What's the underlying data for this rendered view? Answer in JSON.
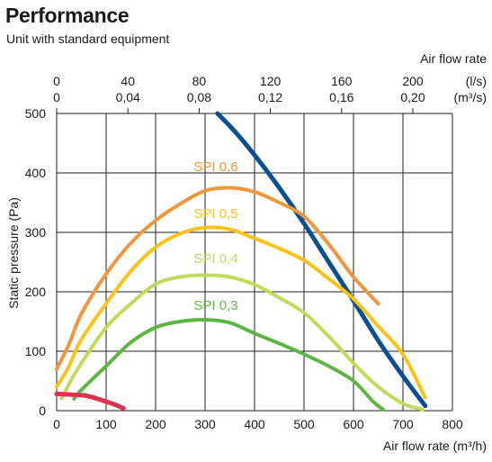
{
  "header": {
    "title": "Performance",
    "subtitle": "Unit with standard equipment"
  },
  "chart_data": {
    "type": "line",
    "title": "Performance",
    "subtitle": "Unit with standard equipment",
    "xlabel": "Air flow rate (m³/h)",
    "ylabel": "Static pressure (Pa)",
    "top_axis_title": "Air flow rate",
    "top_axis_units": [
      "(l/s)",
      "(m³/s)"
    ],
    "xlim": [
      0,
      800
    ],
    "ylim": [
      0,
      500
    ],
    "x_ticks": [
      0,
      100,
      200,
      300,
      400,
      500,
      600,
      700,
      800
    ],
    "y_ticks": [
      0,
      100,
      200,
      300,
      400,
      500
    ],
    "top_ticks_ls": [
      "0",
      "40",
      "80",
      "120",
      "160",
      "200"
    ],
    "top_ticks_m3s": [
      "0",
      "0,04",
      "0,08",
      "0,12",
      "0,16",
      "0,20"
    ],
    "top_tick_m3h": [
      0,
      144,
      288,
      432,
      576,
      720
    ],
    "grid": true,
    "series": [
      {
        "color": "#0b4f95",
        "points": [
          [
            325,
            500
          ],
          [
            360,
            470
          ],
          [
            400,
            430
          ],
          [
            450,
            375
          ],
          [
            500,
            315
          ],
          [
            550,
            250
          ],
          [
            600,
            185
          ],
          [
            650,
            118
          ],
          [
            700,
            58
          ],
          [
            745,
            8
          ]
        ]
      },
      {
        "color": "#f0963c",
        "label": "SPI 0,6",
        "points": [
          [
            0,
            70
          ],
          [
            25,
            112
          ],
          [
            50,
            163
          ],
          [
            100,
            230
          ],
          [
            150,
            282
          ],
          [
            200,
            320
          ],
          [
            250,
            348
          ],
          [
            300,
            370
          ],
          [
            350,
            375
          ],
          [
            400,
            368
          ],
          [
            450,
            350
          ],
          [
            500,
            327
          ],
          [
            550,
            280
          ],
          [
            600,
            225
          ],
          [
            650,
            180
          ]
        ]
      },
      {
        "color": "#fbc219",
        "label": "SPI 0,5",
        "points": [
          [
            0,
            40
          ],
          [
            25,
            75
          ],
          [
            50,
            120
          ],
          [
            100,
            180
          ],
          [
            150,
            235
          ],
          [
            200,
            275
          ],
          [
            250,
            298
          ],
          [
            300,
            308
          ],
          [
            350,
            305
          ],
          [
            400,
            290
          ],
          [
            450,
            273
          ],
          [
            500,
            253
          ],
          [
            550,
            222
          ],
          [
            600,
            188
          ],
          [
            650,
            142
          ],
          [
            700,
            95
          ],
          [
            745,
            22
          ]
        ]
      },
      {
        "color": "#c0dc5a",
        "label": "SPI 0,4",
        "points": [
          [
            10,
            20
          ],
          [
            25,
            45
          ],
          [
            50,
            80
          ],
          [
            100,
            140
          ],
          [
            150,
            180
          ],
          [
            200,
            213
          ],
          [
            250,
            225
          ],
          [
            300,
            228
          ],
          [
            350,
            225
          ],
          [
            400,
            212
          ],
          [
            450,
            190
          ],
          [
            500,
            165
          ],
          [
            550,
            125
          ],
          [
            600,
            80
          ],
          [
            650,
            40
          ],
          [
            700,
            12
          ],
          [
            740,
            2
          ]
        ]
      },
      {
        "color": "#5fb544",
        "label": "SPI 0,3",
        "points": [
          [
            35,
            20
          ],
          [
            50,
            35
          ],
          [
            100,
            75
          ],
          [
            150,
            115
          ],
          [
            200,
            140
          ],
          [
            250,
            150
          ],
          [
            300,
            153
          ],
          [
            350,
            148
          ],
          [
            400,
            130
          ],
          [
            450,
            113
          ],
          [
            500,
            95
          ],
          [
            550,
            75
          ],
          [
            600,
            50
          ],
          [
            640,
            15
          ],
          [
            660,
            2
          ]
        ]
      },
      {
        "color": "#e03050",
        "points": [
          [
            0,
            28
          ],
          [
            30,
            27
          ],
          [
            60,
            25
          ],
          [
            90,
            18
          ],
          [
            115,
            11
          ],
          [
            135,
            4
          ]
        ]
      }
    ]
  }
}
